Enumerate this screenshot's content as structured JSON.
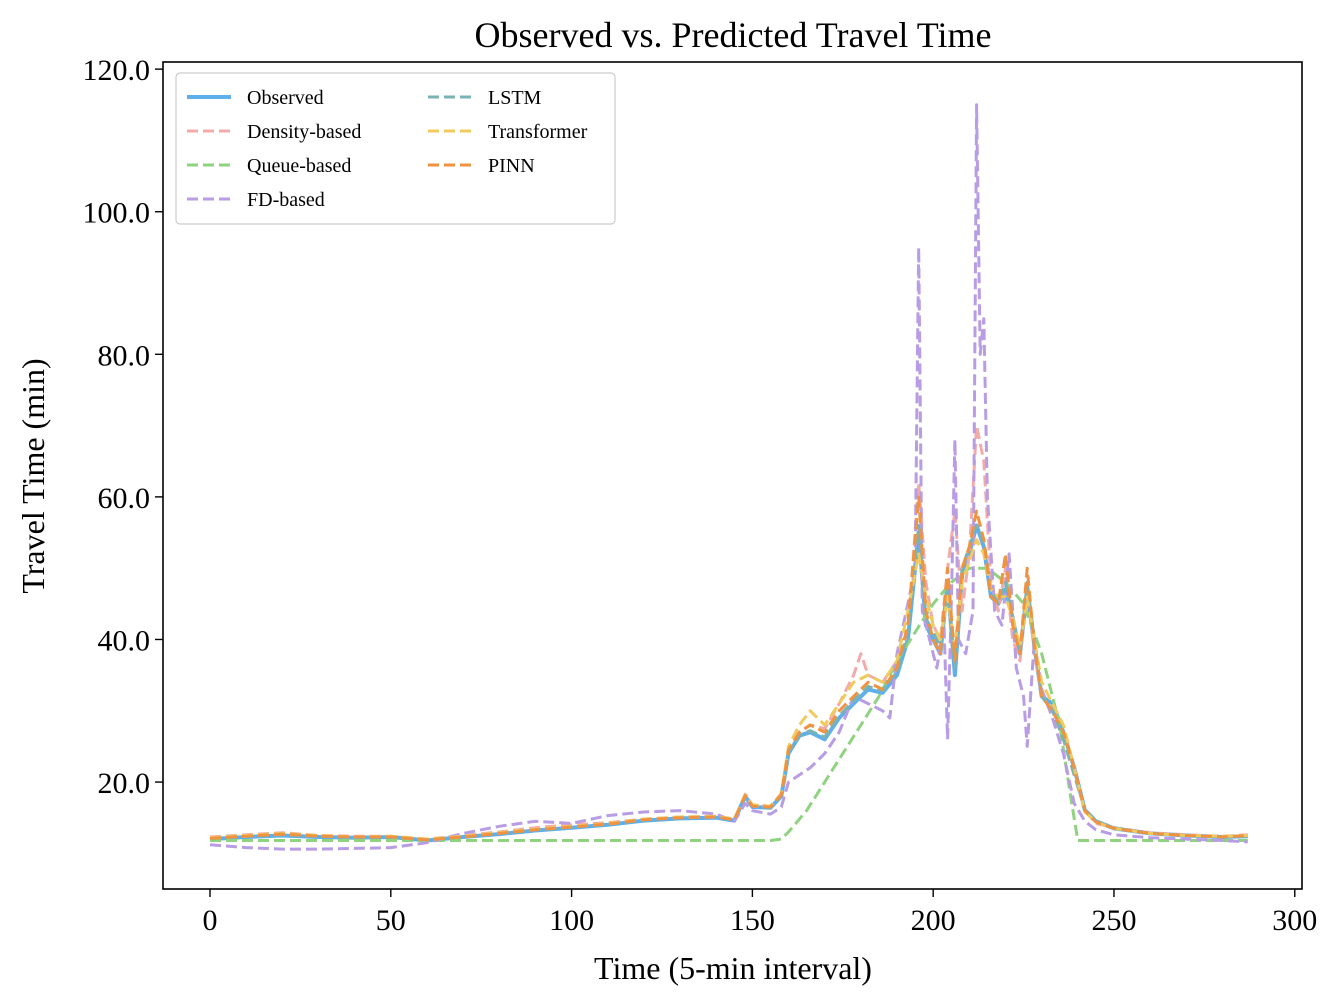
{
  "chart_data": {
    "type": "line",
    "title": "Observed vs. Predicted Travel Time",
    "xlabel": "Time (5-min interval)",
    "ylabel": "Travel Time (min)",
    "xlim": [
      -13,
      302
    ],
    "ylim": [
      5,
      121
    ],
    "xticks": [
      0,
      50,
      100,
      150,
      200,
      250,
      300
    ],
    "xtick_labels": [
      "0",
      "50",
      "100",
      "150",
      "200",
      "250",
      "300"
    ],
    "yticks": [
      20,
      40,
      60,
      80,
      100,
      120
    ],
    "ytick_labels": [
      "20.0",
      "40.0",
      "60.0",
      "80.0",
      "100.0",
      "120.0"
    ],
    "grid": false,
    "legend_position": "top-left",
    "series": [
      {
        "name": "Observed",
        "color": "#5fb0ea",
        "style": "solid",
        "x": [
          0,
          10,
          20,
          30,
          40,
          50,
          60,
          70,
          80,
          90,
          100,
          110,
          120,
          130,
          140,
          145,
          148,
          150,
          155,
          158,
          160,
          163,
          166,
          170,
          174,
          178,
          182,
          186,
          190,
          193,
          196,
          198,
          200,
          202,
          204,
          206,
          208,
          210,
          212,
          214,
          216,
          218,
          220,
          222,
          224,
          226,
          228,
          230,
          233,
          236,
          239,
          242,
          245,
          250,
          260,
          270,
          280,
          287
        ],
        "y": [
          12,
          12.3,
          12.5,
          12.3,
          12.2,
          12.3,
          11.8,
          12.3,
          12.7,
          13.2,
          13.6,
          14,
          14.6,
          14.9,
          15,
          14.6,
          18,
          16.5,
          16.4,
          18,
          24,
          26.5,
          27,
          26,
          29,
          31,
          33,
          32.5,
          35,
          40,
          55,
          42,
          40,
          38,
          48,
          35,
          49,
          52,
          56,
          53,
          46,
          45,
          47,
          43,
          38,
          47,
          39,
          32,
          31,
          27,
          22,
          16,
          14.5,
          13.5,
          12.8,
          12.5,
          12.3,
          12.4
        ]
      },
      {
        "name": "Density-based",
        "color": "#f2aaaa",
        "style": "dashed",
        "x": [
          0,
          10,
          20,
          30,
          40,
          50,
          60,
          70,
          80,
          90,
          100,
          110,
          120,
          130,
          140,
          145,
          148,
          150,
          155,
          158,
          160,
          163,
          166,
          170,
          174,
          178,
          180,
          182,
          186,
          190,
          193,
          196,
          198,
          200,
          202,
          204,
          206,
          208,
          210,
          212,
          214,
          216,
          218,
          220,
          222,
          224,
          226,
          228,
          230,
          233,
          236,
          239,
          242,
          245,
          250,
          260,
          270,
          280,
          287
        ],
        "y": [
          12.3,
          12.6,
          12.9,
          12.5,
          12.4,
          12.4,
          12,
          12.5,
          13,
          13.6,
          14,
          14.3,
          14.8,
          15.1,
          15.2,
          14.8,
          18.3,
          16.8,
          16.6,
          18.4,
          24.5,
          27,
          28,
          27.5,
          31,
          35,
          38,
          35,
          34,
          37,
          41,
          62,
          48,
          42,
          40,
          50,
          58,
          44,
          52,
          70,
          65,
          48,
          44,
          50,
          40,
          37,
          48,
          38,
          32,
          30,
          26,
          21,
          16,
          14.2,
          13.6,
          12.9,
          12.6,
          12.4,
          12.6
        ]
      },
      {
        "name": "Queue-based",
        "color": "#8fd27f",
        "style": "dashed",
        "x": [
          0,
          20,
          40,
          60,
          80,
          100,
          120,
          140,
          155,
          158,
          160,
          165,
          170,
          175,
          180,
          185,
          190,
          195,
          200,
          205,
          210,
          215,
          220,
          225,
          230,
          235,
          238,
          240,
          245,
          260,
          287
        ],
        "y": [
          11.8,
          11.8,
          11.8,
          11.8,
          11.8,
          11.8,
          11.8,
          11.8,
          11.8,
          12,
          13,
          16,
          20,
          24,
          28,
          32,
          37,
          41,
          45,
          48,
          50,
          50,
          48,
          45,
          38,
          28,
          18,
          11.8,
          11.8,
          11.8,
          11.8
        ]
      },
      {
        "name": "FD-based",
        "color": "#b89ce4",
        "style": "dashed",
        "x": [
          0,
          10,
          20,
          30,
          40,
          50,
          60,
          70,
          80,
          90,
          100,
          110,
          120,
          130,
          140,
          145,
          148,
          150,
          155,
          158,
          160,
          163,
          166,
          170,
          174,
          178,
          182,
          186,
          188,
          190,
          193,
          195,
          196,
          197,
          199,
          201,
          203,
          204,
          205,
          206,
          207,
          209,
          211,
          212,
          213,
          214,
          215,
          217,
          219,
          221,
          223,
          225,
          226,
          228,
          230,
          233,
          236,
          239,
          242,
          245,
          250,
          260,
          270,
          280,
          287
        ],
        "y": [
          11.2,
          10.8,
          10.6,
          10.6,
          10.7,
          10.8,
          11.5,
          12.8,
          13.8,
          14.5,
          14.2,
          15.3,
          15.8,
          16,
          15.5,
          14.5,
          17,
          16,
          15.5,
          16.5,
          20,
          21,
          22,
          24,
          27,
          32,
          31,
          30,
          29,
          38,
          45,
          50,
          95,
          44,
          40,
          36,
          42,
          26,
          45,
          68,
          40,
          38,
          44,
          115,
          80,
          85,
          60,
          44,
          42,
          52,
          36,
          32,
          25,
          40,
          33,
          29,
          24,
          17,
          14.5,
          13.3,
          12.6,
          12.2,
          12,
          11.8,
          11.6
        ]
      },
      {
        "name": "LSTM",
        "color": "#7ab3b3",
        "style": "dashed",
        "x": [
          0,
          10,
          20,
          30,
          40,
          50,
          60,
          70,
          80,
          90,
          100,
          110,
          120,
          130,
          140,
          145,
          148,
          150,
          155,
          158,
          160,
          163,
          166,
          170,
          174,
          178,
          182,
          186,
          190,
          193,
          196,
          198,
          200,
          202,
          204,
          206,
          208,
          210,
          212,
          214,
          216,
          218,
          220,
          222,
          224,
          226,
          228,
          230,
          233,
          236,
          239,
          242,
          245,
          250,
          260,
          270,
          280,
          287
        ],
        "y": [
          12.1,
          12.4,
          12.6,
          12.4,
          12.3,
          12.3,
          11.9,
          12.3,
          12.8,
          13.3,
          13.7,
          14.1,
          14.7,
          15,
          15.1,
          14.7,
          18.1,
          16.6,
          16.4,
          18.1,
          24.3,
          26.6,
          27.2,
          26.3,
          29.3,
          31.4,
          33.4,
          32.8,
          35.5,
          41,
          56,
          43,
          41,
          39,
          47,
          36,
          50,
          53,
          56,
          54,
          47,
          45,
          48,
          43,
          38,
          48,
          40,
          32,
          30,
          26,
          21,
          16.2,
          14.6,
          13.6,
          12.8,
          12.5,
          12.3,
          12.4
        ]
      },
      {
        "name": "Transformer",
        "color": "#f1ca5e",
        "style": "dashed",
        "x": [
          0,
          10,
          20,
          30,
          40,
          50,
          60,
          70,
          80,
          90,
          100,
          110,
          120,
          130,
          140,
          145,
          148,
          150,
          155,
          158,
          160,
          163,
          166,
          170,
          174,
          178,
          182,
          186,
          190,
          193,
          196,
          198,
          200,
          202,
          204,
          206,
          208,
          210,
          212,
          214,
          216,
          218,
          220,
          222,
          224,
          226,
          228,
          230,
          233,
          236,
          239,
          242,
          245,
          250,
          260,
          270,
          280,
          287
        ],
        "y": [
          12.2,
          12.5,
          12.8,
          12.5,
          12.3,
          12.4,
          12,
          12.4,
          12.9,
          13.4,
          13.8,
          14.2,
          14.8,
          15.1,
          15.2,
          14.8,
          18.2,
          16.8,
          16.6,
          18.3,
          25,
          28,
          30,
          28,
          31,
          34,
          35,
          34,
          37,
          44,
          52,
          46,
          42,
          40,
          46,
          39,
          48,
          51,
          54,
          52,
          47,
          46,
          46,
          43,
          39,
          46,
          40,
          34,
          31,
          28,
          22,
          15.8,
          14.4,
          13.5,
          12.8,
          12.5,
          12.4,
          12.5
        ]
      },
      {
        "name": "PINN",
        "color": "#ef9340",
        "style": "dashed",
        "x": [
          0,
          10,
          20,
          30,
          40,
          50,
          60,
          70,
          80,
          90,
          100,
          110,
          120,
          130,
          140,
          145,
          148,
          150,
          155,
          158,
          160,
          163,
          166,
          170,
          174,
          178,
          182,
          186,
          190,
          193,
          196,
          198,
          200,
          202,
          204,
          206,
          208,
          210,
          212,
          214,
          216,
          218,
          220,
          222,
          224,
          226,
          228,
          230,
          233,
          236,
          239,
          242,
          245,
          250,
          260,
          270,
          280,
          287
        ],
        "y": [
          12.1,
          12.4,
          12.7,
          12.4,
          12.3,
          12.3,
          11.9,
          12.3,
          12.8,
          13.3,
          13.7,
          14.1,
          14.7,
          15,
          15.1,
          14.7,
          18.1,
          16.6,
          16.5,
          18.2,
          24.5,
          27,
          28,
          27,
          30,
          32,
          34,
          33,
          36,
          42,
          60,
          44,
          40,
          38,
          50,
          37,
          50,
          53,
          58,
          54,
          46,
          45,
          52,
          42,
          38,
          50,
          39,
          32,
          30,
          27,
          22,
          16,
          14.4,
          13.5,
          12.8,
          12.5,
          12.3,
          12.5
        ]
      }
    ]
  }
}
